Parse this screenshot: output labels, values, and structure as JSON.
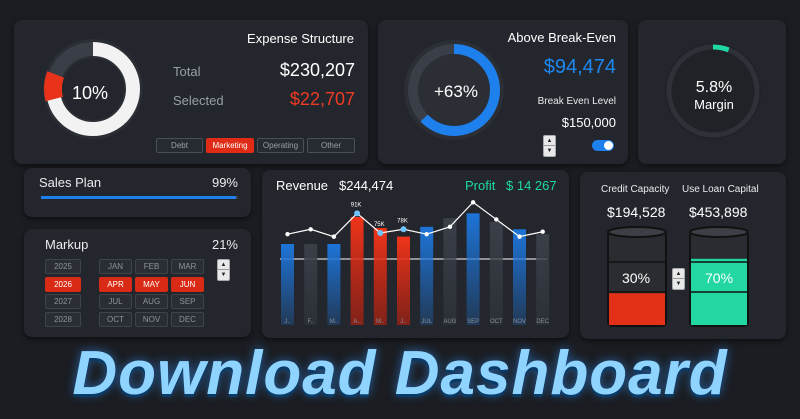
{
  "expense": {
    "title": "Expense Structure",
    "percent": "10%",
    "total_label": "Total",
    "total_value": "$230,207",
    "selected_label": "Selected",
    "selected_value": "$22,707",
    "tabs": [
      "Debt",
      "Marketing",
      "Operating",
      "Other"
    ],
    "active_tab": "Marketing",
    "share": 0.1
  },
  "breakeven": {
    "title": "Above Break-Even",
    "percent": "+63%",
    "value": "$94,474",
    "level_label": "Break Even Level",
    "level_value": "$150,000",
    "fraction": 0.63
  },
  "margin": {
    "value": "5.8%",
    "label": "Margin",
    "fraction": 0.058
  },
  "sales_plan": {
    "label": "Sales Plan",
    "value": "99%",
    "fraction": 0.99
  },
  "markup": {
    "label": "Markup",
    "value": "21%",
    "years": [
      "2025",
      "2026",
      "2027",
      "2028"
    ],
    "active_year": "2026",
    "months": [
      "JAN",
      "FEB",
      "MAR",
      "APR",
      "MAY",
      "JUN",
      "JUL",
      "AUG",
      "SEP",
      "OCT",
      "NOV",
      "DEC"
    ],
    "active_months": [
      "APR",
      "MAY",
      "JUN"
    ]
  },
  "revenue_header": {
    "label": "Revenue",
    "value": "$244,474",
    "profit_label": "Profit",
    "profit_value": "$ 14 267"
  },
  "chart_data": {
    "type": "bar",
    "categories": [
      "J..",
      "F..",
      "M..",
      "A..",
      "M..",
      "J..",
      "JUL",
      "AUG",
      "SEP",
      "OCT",
      "NOV",
      "DEC"
    ],
    "values": [
      66,
      66,
      66,
      88,
      79,
      72,
      80,
      87,
      91,
      84,
      78,
      74
    ],
    "highlighted": [
      "A..",
      "M..",
      "J.."
    ],
    "series": [
      {
        "name": "Revenue",
        "values": [
          66,
          66,
          66,
          88,
          79,
          72,
          80,
          87,
          91,
          84,
          78,
          74
        ]
      },
      {
        "name": "Profit",
        "values": [
          74,
          78,
          72,
          91,
          75,
          78,
          74,
          80,
          100,
          86,
          72,
          76
        ]
      }
    ],
    "data_labels": {
      "3": "91K",
      "4": "75K",
      "5": "78K"
    },
    "ylim": [
      0,
      110
    ],
    "colors": {
      "bar": "#1d74d8",
      "highlight": "#e8331a",
      "dark": "#3b4049",
      "line": "#ffffff"
    }
  },
  "capacity": {
    "credit_label": "Credit Capacity",
    "credit_value": "$194,528",
    "loan_label": "Use Loan Capital",
    "loan_value": "$453,898",
    "credit_percent": "30%",
    "loan_percent": "70%",
    "credit_fill": 0.3,
    "loan_fill": 0.7
  },
  "banner": {
    "text": "Download Dashboard"
  },
  "colors": {
    "accent_blue": "#1e88f0",
    "accent_red": "#ef3b24",
    "accent_green": "#1ed9a3"
  }
}
